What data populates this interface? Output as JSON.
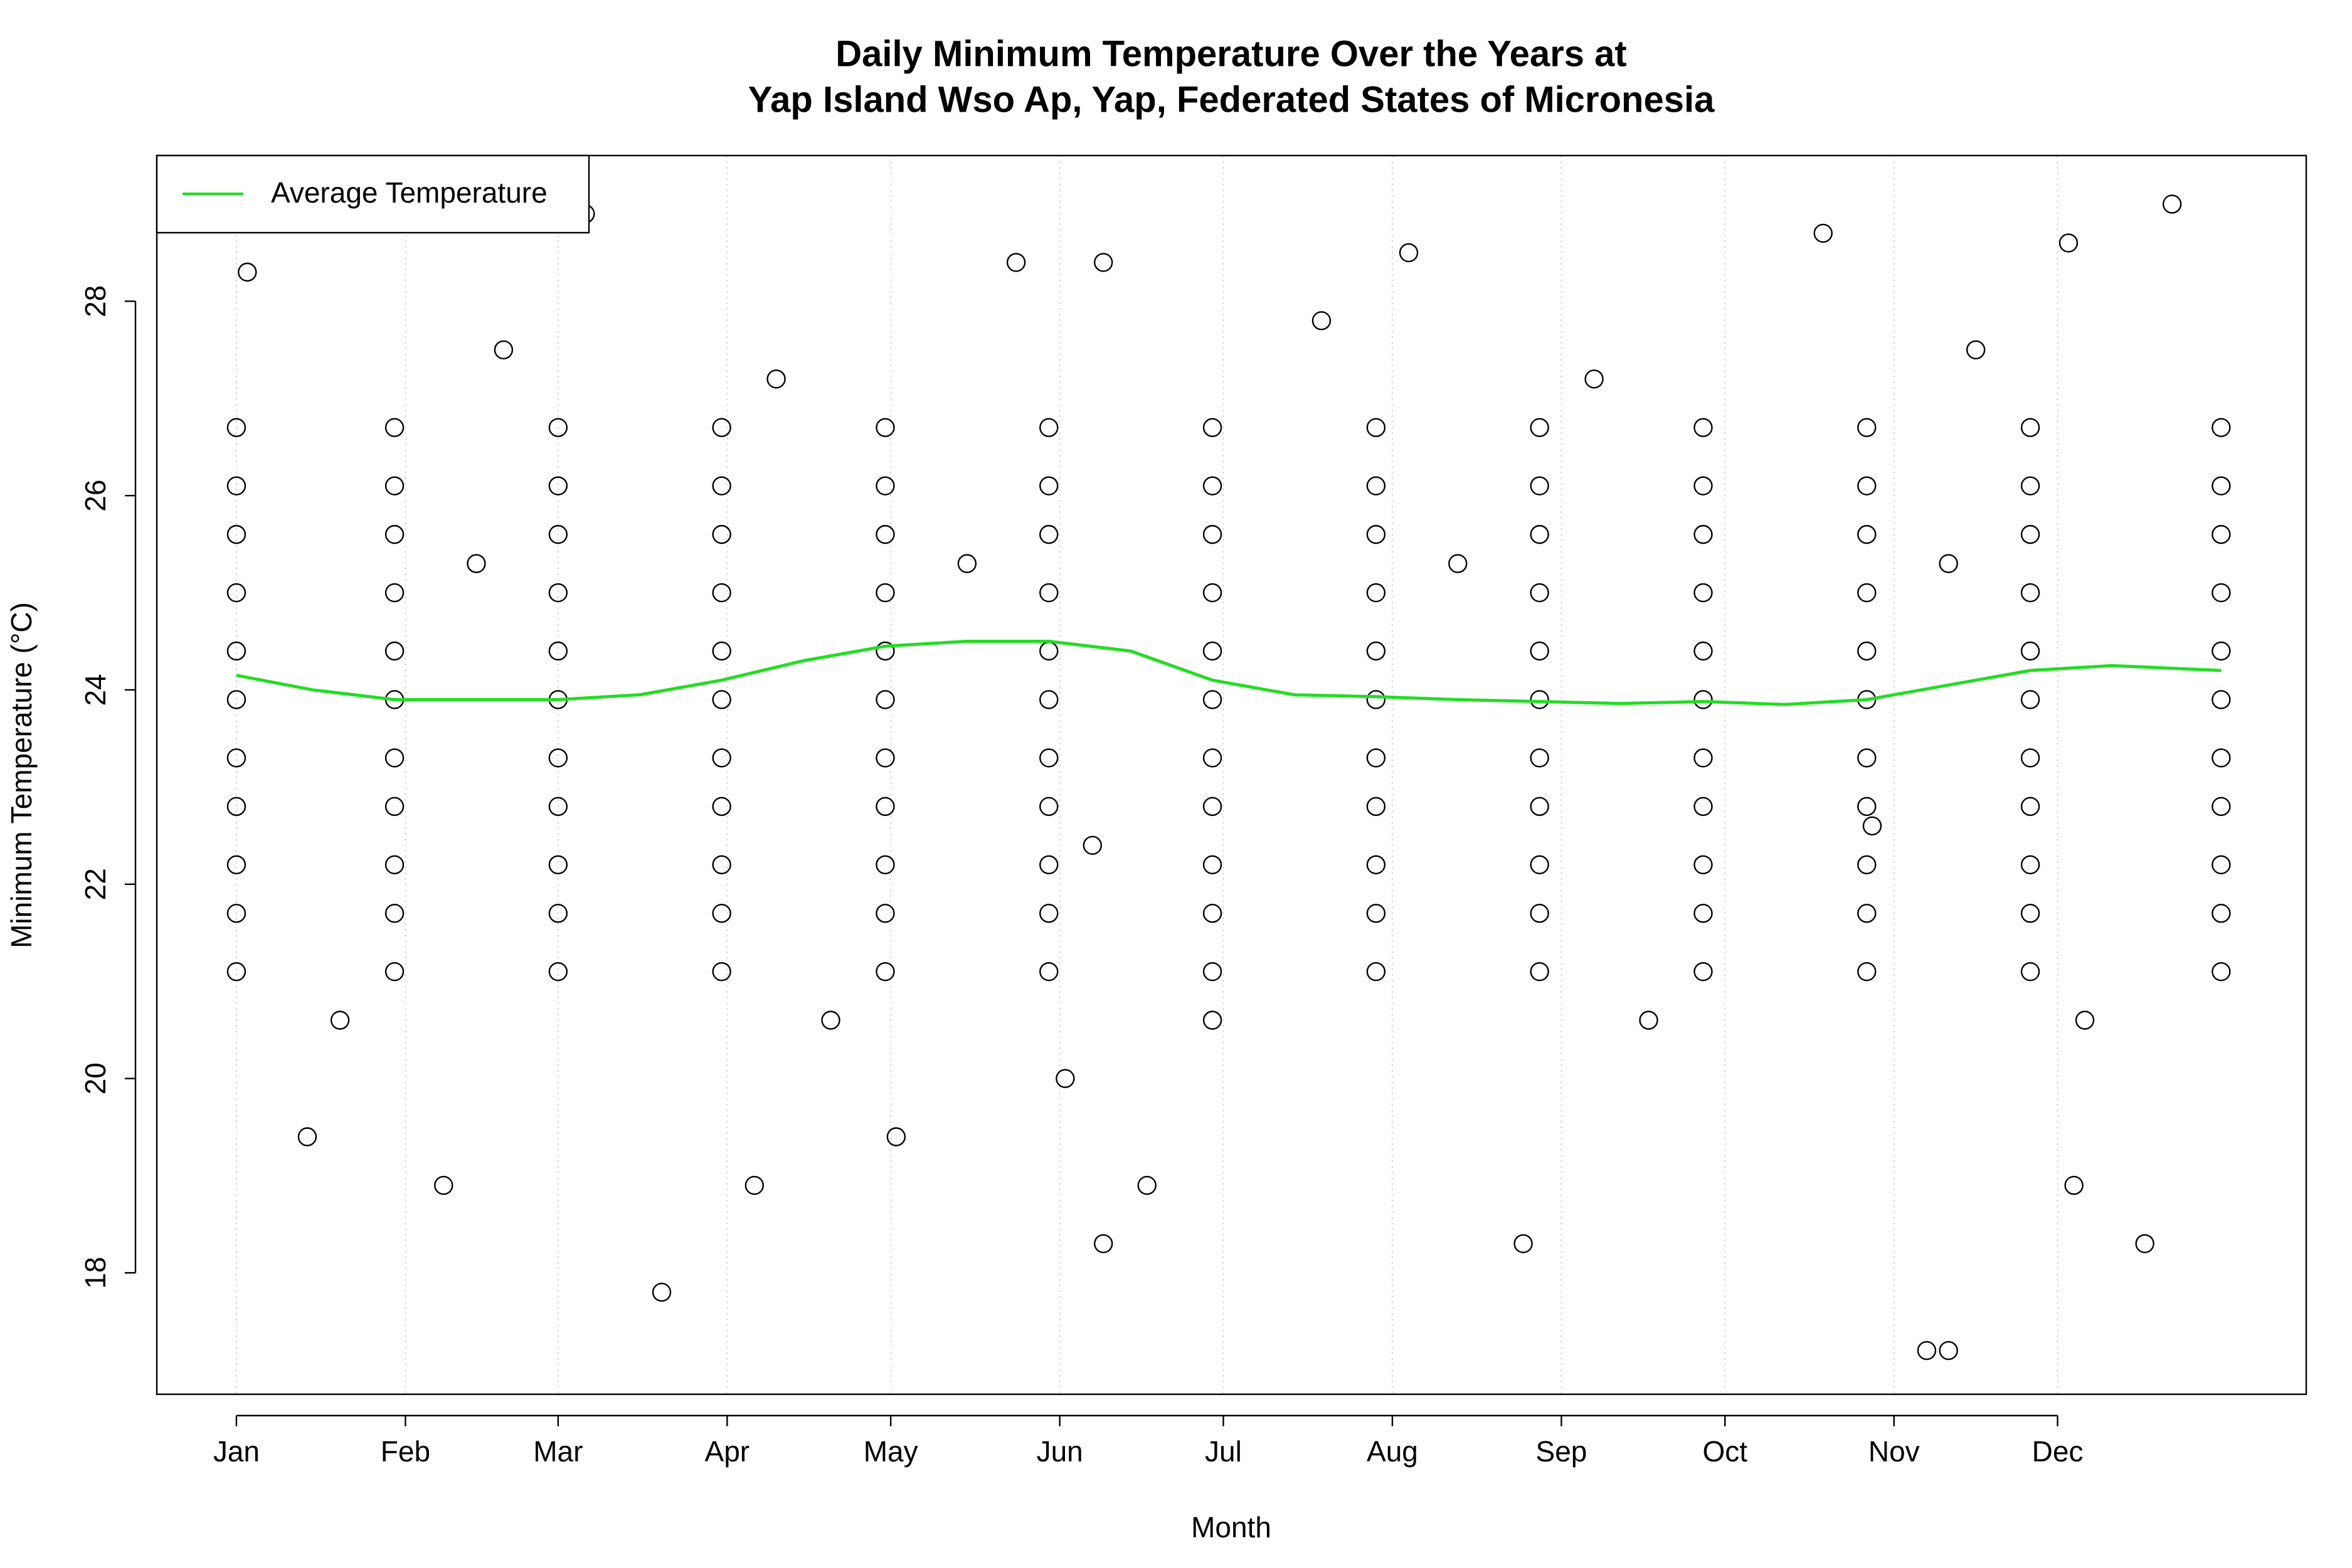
{
  "chart_data": {
    "type": "scatter",
    "title": [
      "Daily Minimum Temperature Over the Years at",
      "Yap Island Wso Ap, Yap, Federated States of Micronesia"
    ],
    "x_label": "Month",
    "y_label": "Minimum Temperature (°C)",
    "xlim": [
      -13.6,
      380.6
    ],
    "ylim": [
      16.75,
      29.5
    ],
    "xticks": [
      {
        "value": 1,
        "label": "Jan"
      },
      {
        "value": 32,
        "label": "Feb"
      },
      {
        "value": 60,
        "label": "Mar"
      },
      {
        "value": 91,
        "label": "Apr"
      },
      {
        "value": 121,
        "label": "May"
      },
      {
        "value": 152,
        "label": "Jun"
      },
      {
        "value": 182,
        "label": "Jul"
      },
      {
        "value": 213,
        "label": "Aug"
      },
      {
        "value": 244,
        "label": "Sep"
      },
      {
        "value": 274,
        "label": "Oct"
      },
      {
        "value": 305,
        "label": "Nov"
      },
      {
        "value": 335,
        "label": "Dec"
      }
    ],
    "yticks": [
      18,
      20,
      22,
      24,
      26,
      28
    ],
    "grid": true,
    "legend_position": "top-left",
    "points": {
      "color": "#000000",
      "x": [
        1,
        30,
        60,
        90,
        120,
        150,
        180,
        210,
        240,
        270,
        300,
        330,
        365,
        1,
        30,
        60,
        90,
        120,
        150,
        180,
        210,
        240,
        270,
        300,
        330,
        365,
        1,
        30,
        60,
        90,
        120,
        150,
        180,
        210,
        240,
        270,
        300,
        330,
        365,
        1,
        30,
        60,
        90,
        120,
        150,
        180,
        210,
        240,
        270,
        300,
        330,
        365,
        1,
        30,
        60,
        90,
        120,
        150,
        180,
        210,
        240,
        270,
        300,
        330,
        365,
        1,
        30,
        60,
        90,
        120,
        150,
        180,
        210,
        240,
        270,
        300,
        330,
        365,
        1,
        30,
        60,
        90,
        120,
        150,
        180,
        210,
        240,
        270,
        300,
        330,
        365,
        1,
        30,
        60,
        90,
        120,
        150,
        180,
        210,
        240,
        270,
        300,
        330,
        365,
        1,
        30,
        60,
        90,
        120,
        150,
        180,
        210,
        240,
        270,
        300,
        330,
        365,
        1,
        30,
        60,
        90,
        120,
        150,
        180,
        210,
        240,
        270,
        300,
        330,
        365,
        1,
        30,
        60,
        90,
        120,
        150,
        180,
        210,
        240,
        270,
        300,
        330,
        365,
        79,
        311,
        315,
        160,
        237,
        351,
        356,
        65,
        292,
        337,
        216,
        144,
        160,
        3,
        39,
        96,
        168,
        338,
        14,
        122,
        153,
        158,
        301,
        50,
        100,
        200,
        250,
        320,
        20,
        110,
        180,
        260,
        340,
        45,
        135,
        225,
        315
      ],
      "y": [
        21.1,
        21.1,
        21.1,
        21.1,
        21.1,
        21.1,
        21.1,
        21.1,
        21.1,
        21.1,
        21.1,
        21.1,
        21.1,
        21.7,
        21.7,
        21.7,
        21.7,
        21.7,
        21.7,
        21.7,
        21.7,
        21.7,
        21.7,
        21.7,
        21.7,
        21.7,
        22.2,
        22.2,
        22.2,
        22.2,
        22.2,
        22.2,
        22.2,
        22.2,
        22.2,
        22.2,
        22.2,
        22.2,
        22.2,
        22.8,
        22.8,
        22.8,
        22.8,
        22.8,
        22.8,
        22.8,
        22.8,
        22.8,
        22.8,
        22.8,
        22.8,
        22.8,
        23.3,
        23.3,
        23.3,
        23.3,
        23.3,
        23.3,
        23.3,
        23.3,
        23.3,
        23.3,
        23.3,
        23.3,
        23.3,
        23.9,
        23.9,
        23.9,
        23.9,
        23.9,
        23.9,
        23.9,
        23.9,
        23.9,
        23.9,
        23.9,
        23.9,
        23.9,
        24.4,
        24.4,
        24.4,
        24.4,
        24.4,
        24.4,
        24.4,
        24.4,
        24.4,
        24.4,
        24.4,
        24.4,
        24.4,
        25.0,
        25.0,
        25.0,
        25.0,
        25.0,
        25.0,
        25.0,
        25.0,
        25.0,
        25.0,
        25.0,
        25.0,
        25.0,
        25.6,
        25.6,
        25.6,
        25.6,
        25.6,
        25.6,
        25.6,
        25.6,
        25.6,
        25.6,
        25.6,
        25.6,
        25.6,
        26.1,
        26.1,
        26.1,
        26.1,
        26.1,
        26.1,
        26.1,
        26.1,
        26.1,
        26.1,
        26.1,
        26.1,
        26.1,
        26.7,
        26.7,
        26.7,
        26.7,
        26.7,
        26.7,
        26.7,
        26.7,
        26.7,
        26.7,
        26.7,
        26.7,
        26.7,
        17.8,
        17.2,
        17.2,
        18.3,
        18.3,
        18.3,
        29.0,
        28.9,
        28.7,
        28.6,
        28.5,
        28.4,
        28.4,
        28.3,
        18.9,
        18.9,
        18.9,
        18.9,
        19.4,
        19.4,
        20.0,
        22.4,
        22.6,
        27.5,
        27.2,
        27.8,
        27.2,
        27.5,
        20.6,
        20.6,
        20.6,
        20.6,
        20.6,
        25.3,
        25.3,
        25.3,
        25.3
      ]
    },
    "average": {
      "name": "Average Temperature",
      "color": "#22dd22",
      "x": [
        1,
        15,
        30,
        45,
        60,
        75,
        90,
        105,
        120,
        135,
        150,
        165,
        180,
        195,
        210,
        225,
        240,
        255,
        270,
        285,
        300,
        315,
        330,
        345,
        365
      ],
      "y": [
        24.15,
        24.0,
        23.9,
        23.9,
        23.9,
        23.95,
        24.1,
        24.3,
        24.45,
        24.5,
        24.5,
        24.4,
        24.1,
        23.95,
        23.93,
        23.9,
        23.88,
        23.86,
        23.88,
        23.85,
        23.9,
        24.05,
        24.2,
        24.25,
        24.2
      ]
    }
  }
}
